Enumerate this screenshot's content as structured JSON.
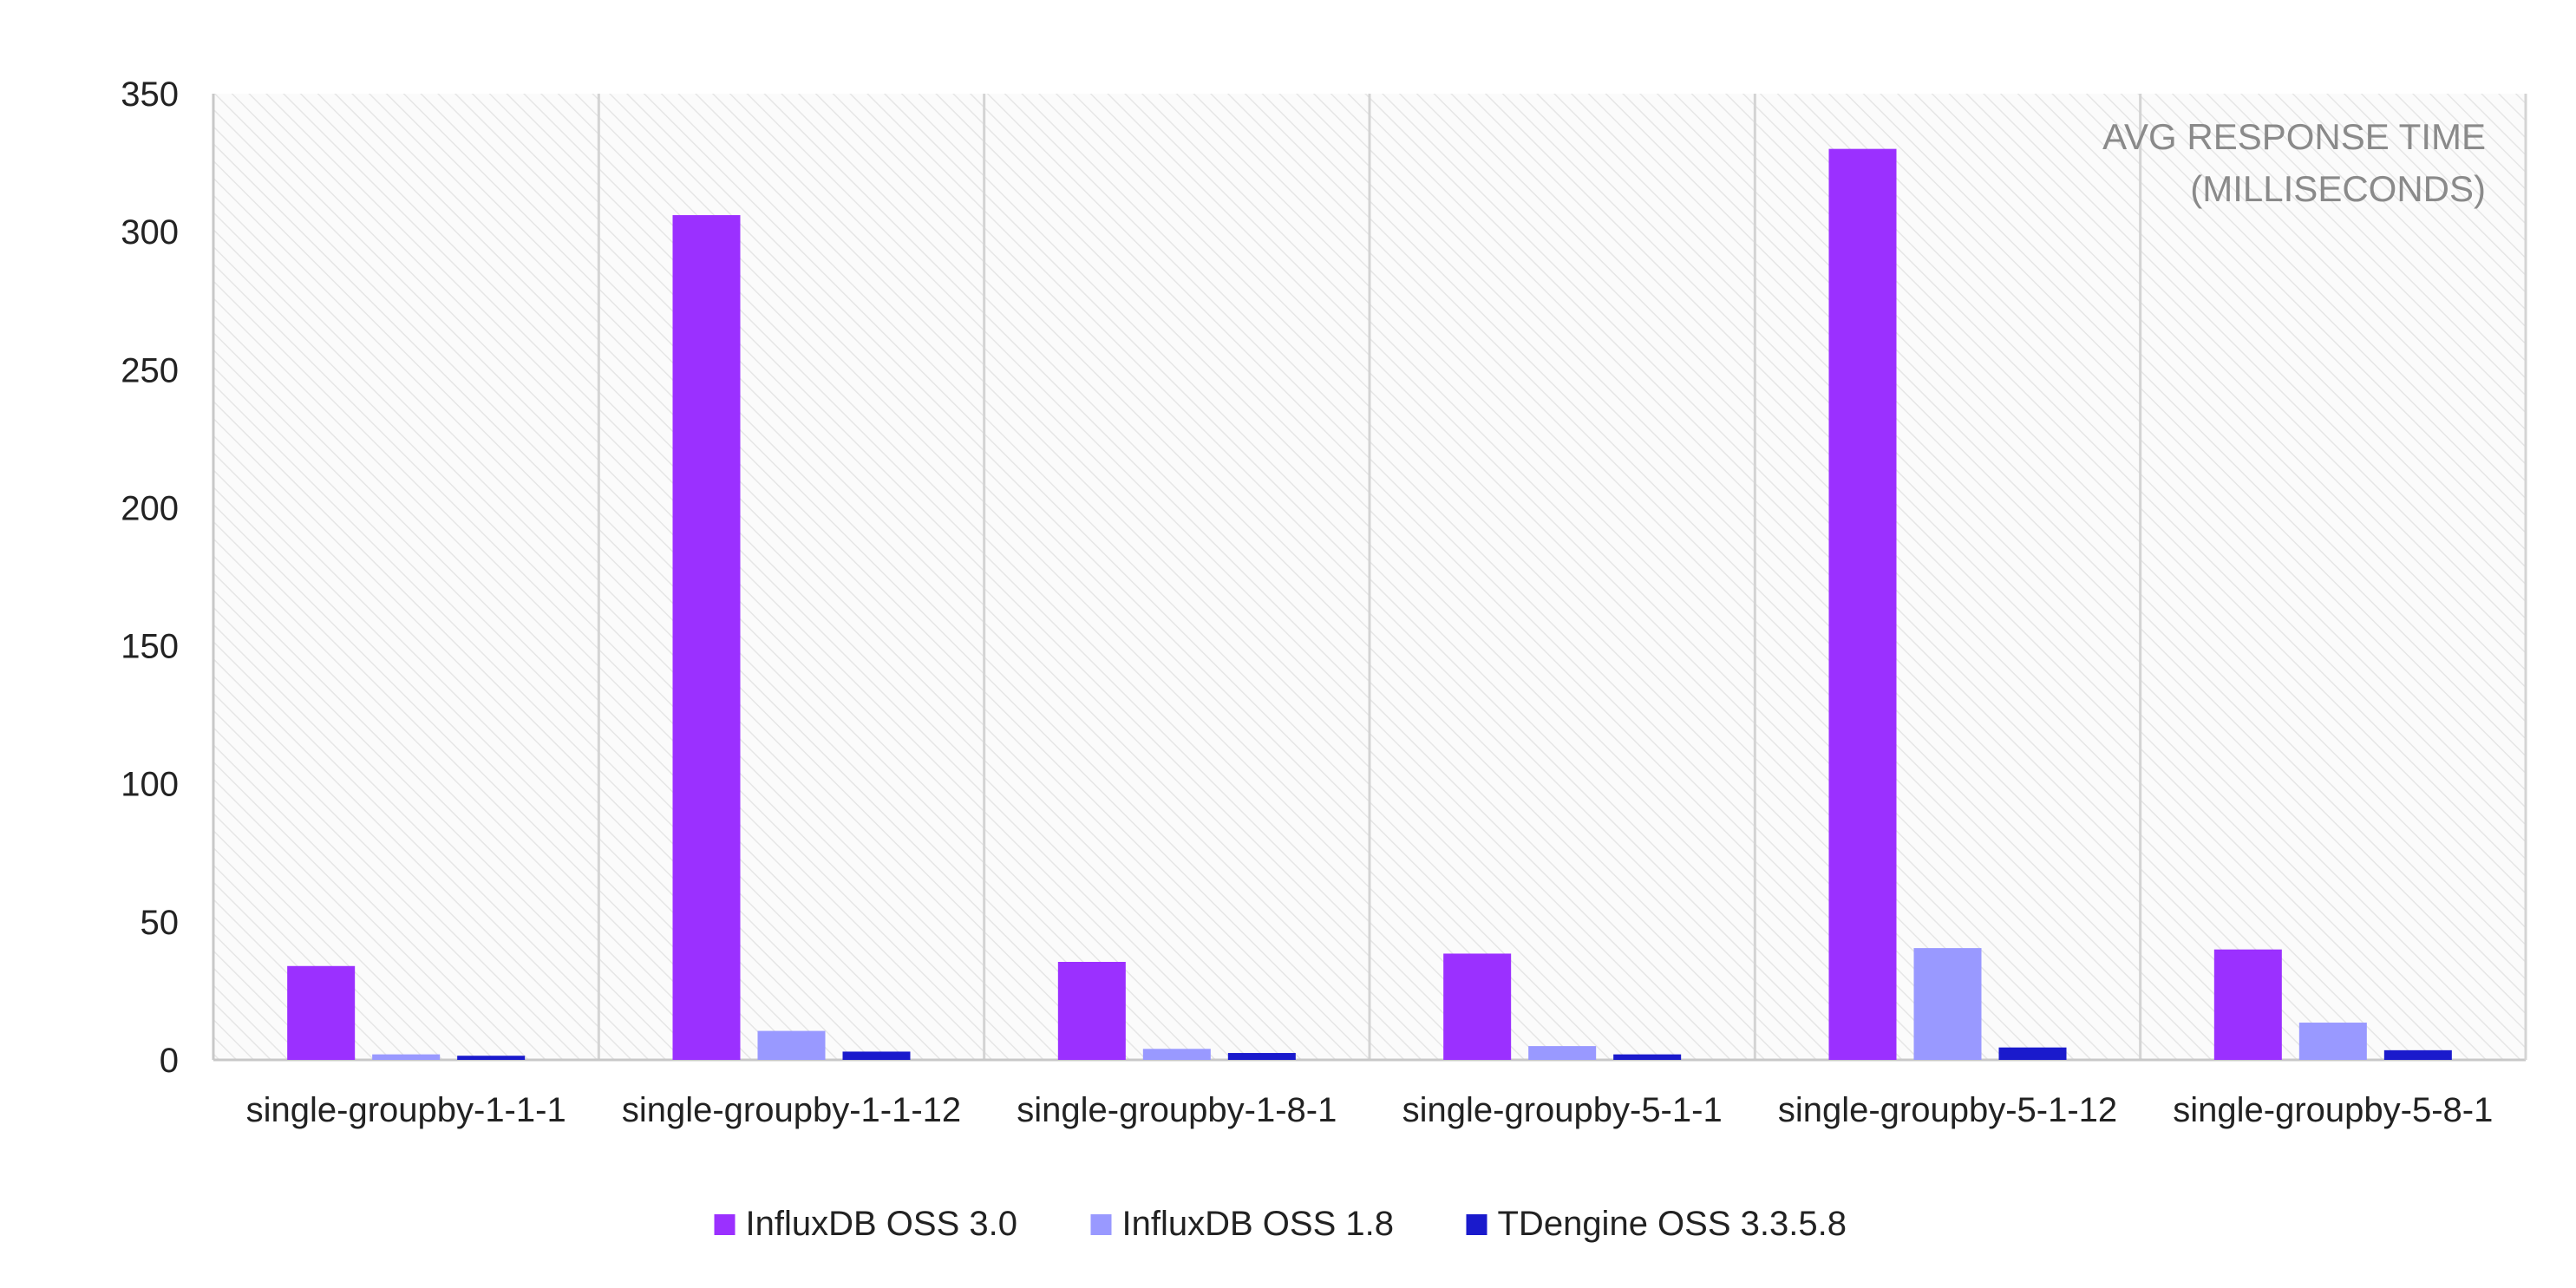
{
  "chart_data": {
    "type": "bar",
    "title": "",
    "annotation": [
      "AVG RESPONSE TIME",
      "(MILLISECONDS)"
    ],
    "xlabel": "",
    "ylabel": "",
    "categories": [
      "single-groupby-1-1-1",
      "single-groupby-1-1-12",
      "single-groupby-1-8-1",
      "single-groupby-5-1-1",
      "single-groupby-5-1-12",
      "single-groupby-5-8-1"
    ],
    "series": [
      {
        "name": "InfluxDB OSS 3.0",
        "color": "#9b30ff",
        "values": [
          34,
          306,
          35.5,
          38.5,
          330,
          40
        ]
      },
      {
        "name": "InfluxDB OSS 1.8",
        "color": "#9999ff",
        "values": [
          2,
          10.5,
          4,
          5,
          40.5,
          13.5
        ]
      },
      {
        "name": "TDengine OSS 3.3.5.8",
        "color": "#1a1acc",
        "values": [
          1.5,
          3,
          2.5,
          2,
          4.5,
          3.5
        ]
      }
    ],
    "ylim": [
      0,
      350
    ],
    "yticks": [
      "0",
      "50",
      "100",
      "150",
      "200",
      "250",
      "300",
      "350"
    ],
    "grid": false,
    "category_separators": true,
    "legend_position": "bottom"
  }
}
